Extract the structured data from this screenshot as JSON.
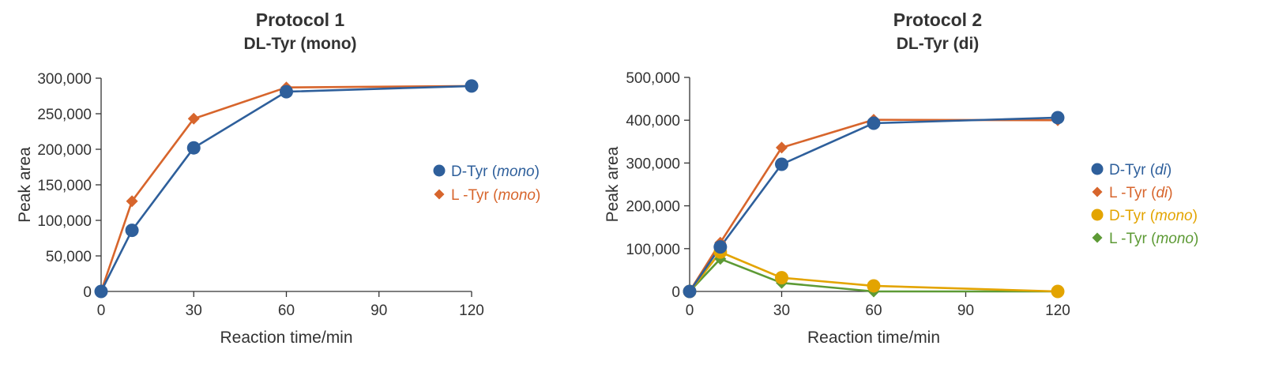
{
  "chart_data": [
    {
      "type": "line",
      "title": "Protocol 1",
      "subtitle": "DL-Tyr (mono)",
      "xlabel": "Reaction time/min",
      "ylabel": "Peak area",
      "xlim": [
        0,
        120
      ],
      "ylim": [
        0,
        300000
      ],
      "x_ticks": [
        0,
        30,
        60,
        90,
        120
      ],
      "x_tick_labels": [
        "0",
        "30",
        "60",
        "90",
        "120"
      ],
      "y_ticks": [
        0,
        50000,
        100000,
        150000,
        200000,
        250000,
        300000
      ],
      "y_tick_labels": [
        "0",
        "50,000",
        "100,000",
        "150,000",
        "200,000",
        "250,000",
        "300,000"
      ],
      "grid": false,
      "legend_position": "right",
      "series": [
        {
          "name": "D-Tyr (mono)",
          "legend_prefix": "D-Tyr (",
          "legend_italic": "mono",
          "legend_suffix": ")",
          "color": "#2e5f9b",
          "marker": "circle",
          "x": [
            0,
            10,
            30,
            60,
            120
          ],
          "y": [
            0,
            86000,
            202000,
            281000,
            289000
          ]
        },
        {
          "name": "L-Tyr (mono)",
          "legend_prefix": "L -Tyr (",
          "legend_italic": "mono",
          "legend_suffix": ")",
          "color": "#d7652c",
          "marker": "diamond",
          "x": [
            0,
            10,
            30,
            60,
            120
          ],
          "y": [
            0,
            127000,
            243000,
            287000,
            289000
          ]
        }
      ]
    },
    {
      "type": "line",
      "title": "Protocol 2",
      "subtitle": "DL-Tyr (di)",
      "xlabel": "Reaction time/min",
      "ylabel": "Peak area",
      "xlim": [
        0,
        120
      ],
      "ylim": [
        0,
        500000
      ],
      "x_ticks": [
        0,
        30,
        60,
        90,
        120
      ],
      "x_tick_labels": [
        "0",
        "30",
        "60",
        "90",
        "120"
      ],
      "y_ticks": [
        0,
        100000,
        200000,
        300000,
        400000,
        500000
      ],
      "y_tick_labels": [
        "0",
        "100,000",
        "200,000",
        "300,000",
        "400,000",
        "500,000"
      ],
      "grid": false,
      "legend_position": "right",
      "series": [
        {
          "name": "D-Tyr (di)",
          "legend_prefix": "D-Tyr (",
          "legend_italic": "di",
          "legend_suffix": ")",
          "color": "#2e5f9b",
          "marker": "circle",
          "x": [
            0,
            10,
            30,
            60,
            120
          ],
          "y": [
            0,
            104000,
            297000,
            393000,
            406000
          ]
        },
        {
          "name": "L-Tyr (di)",
          "legend_prefix": "L -Tyr (",
          "legend_italic": "di",
          "legend_suffix": ")",
          "color": "#d7652c",
          "marker": "diamond",
          "x": [
            0,
            10,
            30,
            60,
            120
          ],
          "y": [
            0,
            114000,
            336000,
            401000,
            400000
          ]
        },
        {
          "name": "D-Tyr (mono)",
          "legend_prefix": "D-Tyr (",
          "legend_italic": "mono",
          "legend_suffix": ")",
          "color": "#e3a400",
          "marker": "circle",
          "x": [
            0,
            10,
            30,
            60,
            120
          ],
          "y": [
            0,
            92000,
            32000,
            13000,
            0
          ]
        },
        {
          "name": "L-Tyr (mono)",
          "legend_prefix": "L -Tyr (",
          "legend_italic": "mono",
          "legend_suffix": ")",
          "color": "#5d9a35",
          "marker": "diamond",
          "x": [
            0,
            10,
            30,
            60,
            120
          ],
          "y": [
            0,
            76000,
            20000,
            0,
            0
          ]
        }
      ]
    }
  ]
}
